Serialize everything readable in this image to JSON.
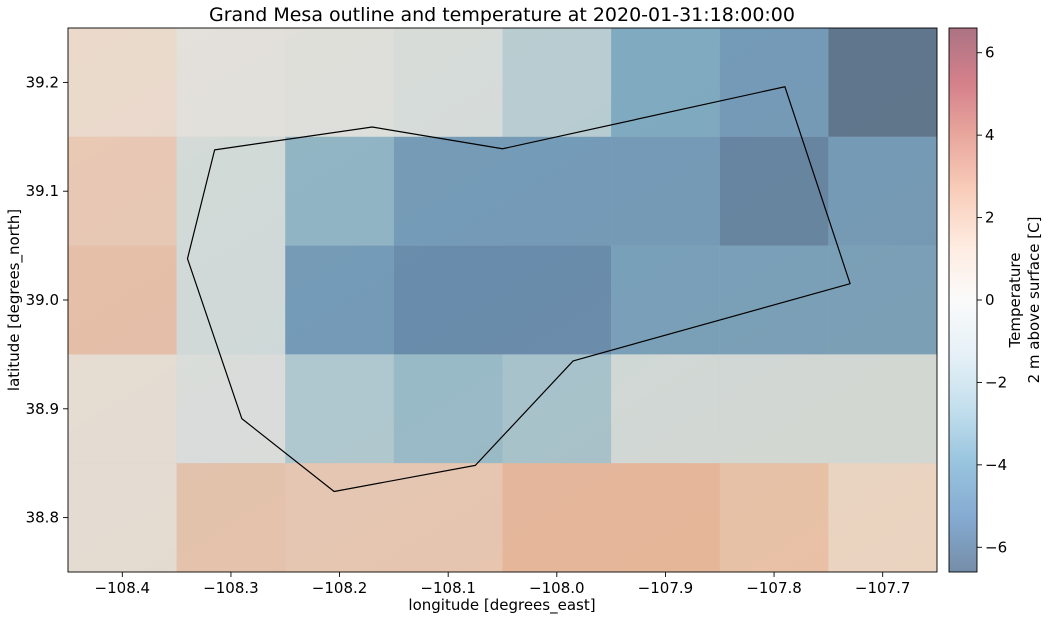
{
  "chart_data": {
    "type": "heatmap",
    "title": "Grand Mesa outline and temperature at 2020-01-31:18:00:00",
    "xlabel": "longitude [degrees_east]",
    "ylabel": "latitude [degrees_north]",
    "xlim": [
      -108.45,
      -107.65
    ],
    "ylim": [
      38.75,
      39.25
    ],
    "x_ticks": [
      -108.4,
      -108.3,
      -108.2,
      -108.1,
      -108.0,
      -107.9,
      -107.8,
      -107.7
    ],
    "x_tick_labels": [
      "−108.4",
      "−108.3",
      "−108.2",
      "−108.1",
      "−108.0",
      "−107.9",
      "−107.8",
      "−107.7"
    ],
    "y_ticks": [
      38.8,
      38.9,
      39.0,
      39.1,
      39.2
    ],
    "y_tick_labels": [
      "38.8",
      "38.9",
      "39.0",
      "39.1",
      "39.2"
    ],
    "grid": false,
    "cell_size_deg": 0.1,
    "cell_lon_centers": [
      -108.4,
      -108.3,
      -108.2,
      -108.1,
      -108.0,
      -107.9,
      -107.8,
      -107.7
    ],
    "cell_lat_centers": [
      39.2,
      39.1,
      39.0,
      38.9,
      38.8
    ],
    "values": [
      [
        0.8,
        -0.3,
        -0.5,
        -0.9,
        -2.2,
        -4.0,
        -4.8,
        -6.5
      ],
      [
        1.8,
        -1.2,
        -3.5,
        -4.8,
        -4.8,
        -4.8,
        -5.8,
        -4.8
      ],
      [
        2.2,
        -1.2,
        -4.8,
        -5.5,
        -5.5,
        -4.5,
        -4.5,
        -4.5
      ],
      [
        0.5,
        -0.6,
        -2.5,
        -3.2,
        -2.8,
        -1.2,
        -1.2,
        -1.2
      ],
      [
        0.5,
        2.0,
        1.8,
        1.8,
        2.5,
        2.5,
        2.0,
        1.0
      ]
    ],
    "outline": {
      "lon": [
        -108.315,
        -108.17,
        -108.05,
        -107.79,
        -107.73,
        -107.985,
        -108.075,
        -108.205,
        -108.29,
        -108.34,
        -108.315
      ],
      "lat": [
        39.138,
        39.159,
        39.139,
        39.196,
        39.015,
        38.944,
        38.848,
        38.824,
        38.891,
        39.038,
        39.138
      ]
    },
    "colorbar": {
      "label_line1": "Temperature",
      "label_line2": "2 m above surface [C]",
      "vmin": -6.6,
      "vmax": 6.6,
      "ticks": [
        6,
        4,
        2,
        0,
        -2,
        -4,
        -6
      ],
      "tick_labels": [
        "6",
        "4",
        "2",
        "0",
        "−2",
        "−4",
        "−6"
      ],
      "colormap": "RdBu_r",
      "alpha": 0.55
    }
  }
}
